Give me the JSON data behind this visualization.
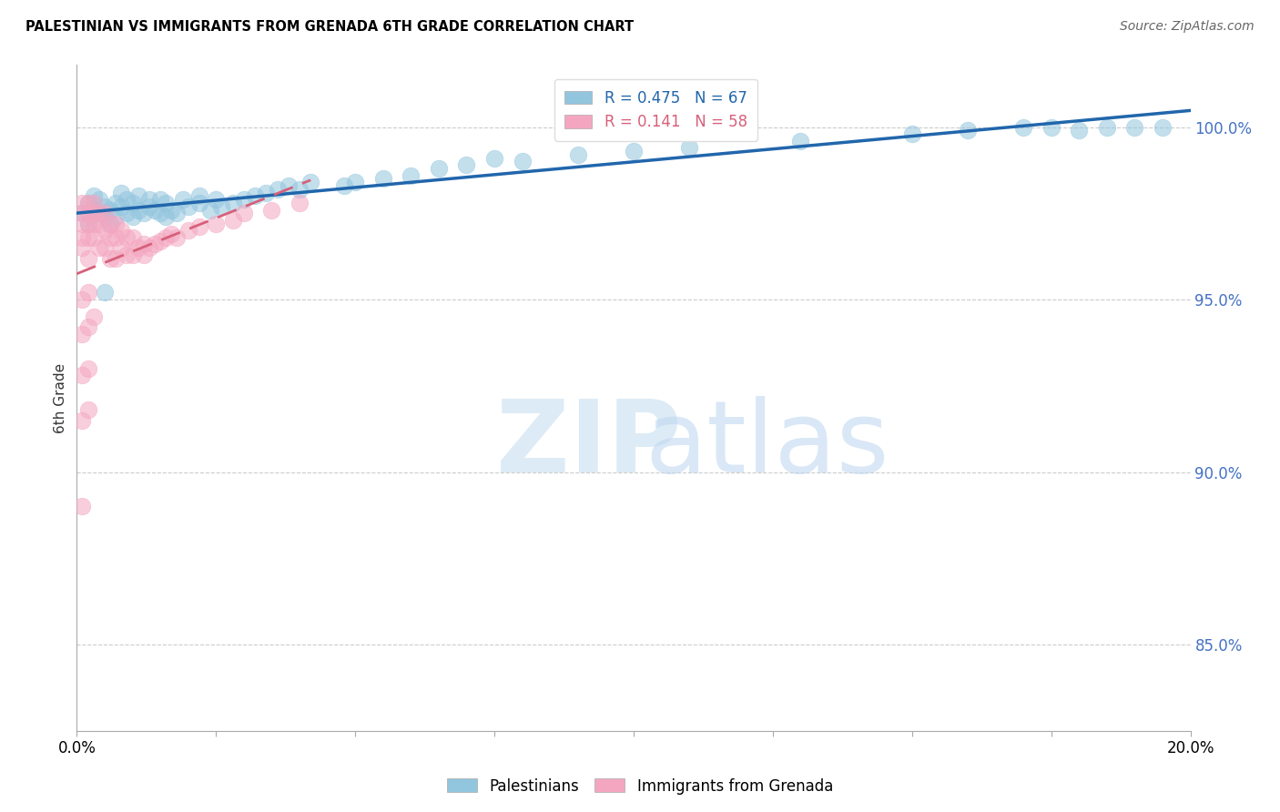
{
  "title": "PALESTINIAN VS IMMIGRANTS FROM GRENADA 6TH GRADE CORRELATION CHART",
  "source": "Source: ZipAtlas.com",
  "ylabel": "6th Grade",
  "ytick_labels": [
    "85.0%",
    "90.0%",
    "95.0%",
    "100.0%"
  ],
  "ytick_values": [
    0.85,
    0.9,
    0.95,
    1.0
  ],
  "xlim": [
    0.0,
    0.2
  ],
  "ylim": [
    0.825,
    1.018
  ],
  "r_palestinian": 0.475,
  "n_palestinian": 67,
  "r_grenada": 0.141,
  "n_grenada": 58,
  "blue_color": "#92c5de",
  "pink_color": "#f4a6c0",
  "blue_line_color": "#2166ac",
  "pink_line_color": "#d6607a",
  "legend_label_blue": "Palestinians",
  "legend_label_pink": "Immigrants from Grenada",
  "grid_color": "#cccccc",
  "blue_scatter_x": [
    0.001,
    0.002,
    0.002,
    0.003,
    0.003,
    0.004,
    0.004,
    0.005,
    0.005,
    0.006,
    0.006,
    0.007,
    0.007,
    0.008,
    0.008,
    0.009,
    0.009,
    0.01,
    0.01,
    0.011,
    0.011,
    0.012,
    0.013,
    0.013,
    0.014,
    0.015,
    0.015,
    0.016,
    0.016,
    0.017,
    0.018,
    0.019,
    0.02,
    0.022,
    0.022,
    0.024,
    0.025,
    0.026,
    0.028,
    0.03,
    0.032,
    0.034,
    0.036,
    0.038,
    0.04,
    0.042,
    0.048,
    0.05,
    0.055,
    0.06,
    0.065,
    0.07,
    0.075,
    0.08,
    0.09,
    0.1,
    0.11,
    0.13,
    0.15,
    0.16,
    0.17,
    0.175,
    0.18,
    0.185,
    0.19,
    0.195,
    0.005
  ],
  "blue_scatter_y": [
    0.975,
    0.978,
    0.972,
    0.98,
    0.976,
    0.975,
    0.979,
    0.974,
    0.977,
    0.972,
    0.976,
    0.978,
    0.974,
    0.977,
    0.981,
    0.975,
    0.979,
    0.974,
    0.978,
    0.976,
    0.98,
    0.975,
    0.979,
    0.977,
    0.976,
    0.975,
    0.979,
    0.974,
    0.978,
    0.976,
    0.975,
    0.979,
    0.977,
    0.978,
    0.98,
    0.976,
    0.979,
    0.977,
    0.978,
    0.979,
    0.98,
    0.981,
    0.982,
    0.983,
    0.982,
    0.984,
    0.983,
    0.984,
    0.985,
    0.986,
    0.988,
    0.989,
    0.991,
    0.99,
    0.992,
    0.993,
    0.994,
    0.996,
    0.998,
    0.999,
    1.0,
    1.0,
    0.999,
    1.0,
    1.0,
    1.0,
    0.952
  ],
  "pink_scatter_x": [
    0.001,
    0.001,
    0.001,
    0.001,
    0.001,
    0.002,
    0.002,
    0.002,
    0.002,
    0.002,
    0.003,
    0.003,
    0.003,
    0.003,
    0.004,
    0.004,
    0.004,
    0.005,
    0.005,
    0.005,
    0.006,
    0.006,
    0.006,
    0.007,
    0.007,
    0.007,
    0.008,
    0.008,
    0.009,
    0.009,
    0.01,
    0.01,
    0.011,
    0.012,
    0.012,
    0.013,
    0.014,
    0.015,
    0.016,
    0.017,
    0.018,
    0.02,
    0.022,
    0.025,
    0.028,
    0.03,
    0.035,
    0.04,
    0.001,
    0.002,
    0.001,
    0.002,
    0.003,
    0.001,
    0.002,
    0.001,
    0.002,
    0.001
  ],
  "pink_scatter_y": [
    0.978,
    0.975,
    0.972,
    0.968,
    0.965,
    0.978,
    0.975,
    0.972,
    0.968,
    0.962,
    0.978,
    0.975,
    0.972,
    0.968,
    0.975,
    0.972,
    0.965,
    0.975,
    0.97,
    0.965,
    0.972,
    0.968,
    0.962,
    0.972,
    0.968,
    0.962,
    0.97,
    0.965,
    0.968,
    0.963,
    0.968,
    0.963,
    0.965,
    0.966,
    0.963,
    0.965,
    0.966,
    0.967,
    0.968,
    0.969,
    0.968,
    0.97,
    0.971,
    0.972,
    0.973,
    0.975,
    0.976,
    0.978,
    0.95,
    0.952,
    0.94,
    0.942,
    0.945,
    0.928,
    0.93,
    0.915,
    0.918,
    0.89
  ]
}
